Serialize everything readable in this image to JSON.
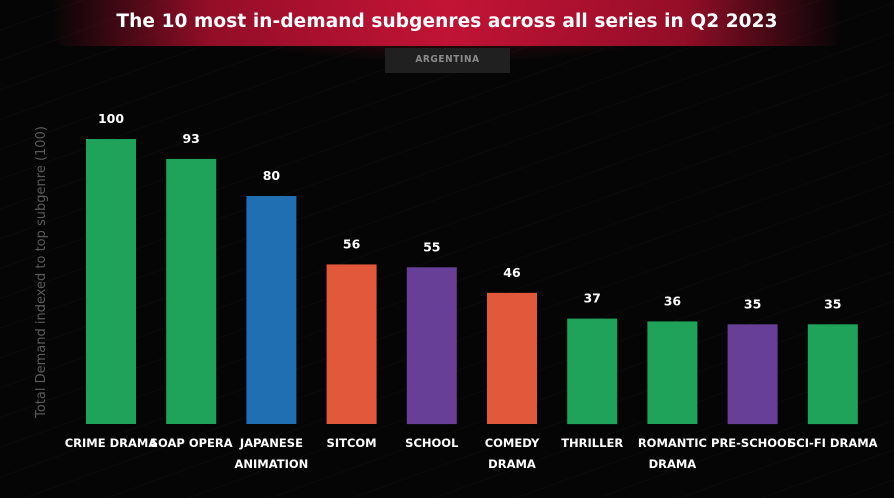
{
  "title": "The 10 most in-demand subgenres across all series in Q2 2023",
  "region_badge": "ARGENTINA",
  "chart_data": {
    "type": "bar",
    "title": "The 10 most in-demand subgenres across all series in Q2 2023",
    "subtitle": "ARGENTINA",
    "xlabel": "",
    "ylabel": "Total Demand indexed to top subgenre (100)",
    "ylim": [
      0,
      100
    ],
    "grid": false,
    "categories": [
      [
        "CRIME DRAMA"
      ],
      [
        "SOAP OPERA"
      ],
      [
        "JAPANESE",
        "ANIMATION"
      ],
      [
        "SITCOM"
      ],
      [
        "SCHOOL"
      ],
      [
        "COMEDY",
        "DRAMA"
      ],
      [
        "THRILLER"
      ],
      [
        "ROMANTIC",
        "DRAMA"
      ],
      [
        "PRE-SCHOOL"
      ],
      [
        "SCI-FI DRAMA"
      ]
    ],
    "values": [
      100,
      93,
      80,
      56,
      55,
      46,
      37,
      36,
      35,
      35
    ],
    "bar_colors": [
      "#1fa35a",
      "#1fa35a",
      "#1f6fb2",
      "#e2583a",
      "#673f96",
      "#e2583a",
      "#1fa35a",
      "#1fa35a",
      "#673f96",
      "#1fa35a"
    ]
  }
}
